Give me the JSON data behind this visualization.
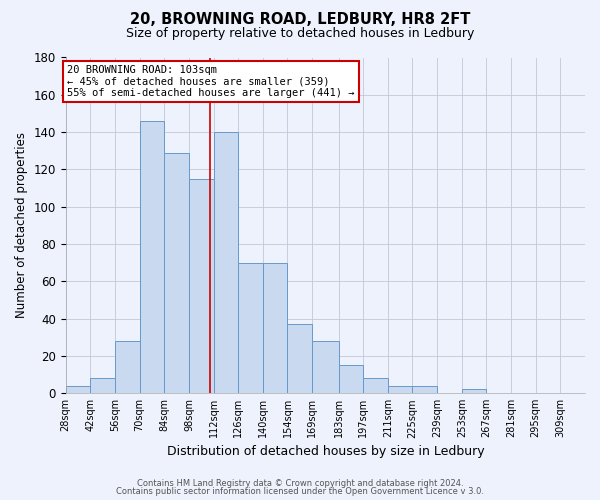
{
  "title_line1": "20, BROWNING ROAD, LEDBURY, HR8 2FT",
  "title_line2": "Size of property relative to detached houses in Ledbury",
  "xlabel": "Distribution of detached houses by size in Ledbury",
  "ylabel": "Number of detached properties",
  "bar_labels": [
    "28sqm",
    "42sqm",
    "56sqm",
    "70sqm",
    "84sqm",
    "98sqm",
    "112sqm",
    "126sqm",
    "140sqm",
    "154sqm",
    "169sqm",
    "183sqm",
    "197sqm",
    "211sqm",
    "225sqm",
    "239sqm",
    "253sqm",
    "267sqm",
    "281sqm",
    "295sqm",
    "309sqm"
  ],
  "bar_values": [
    4,
    8,
    28,
    146,
    129,
    115,
    140,
    70,
    70,
    37,
    28,
    15,
    8,
    4,
    4,
    0,
    2,
    0,
    0,
    0,
    0
  ],
  "bar_color": "#c9d9f0",
  "bar_edge_color": "#6699cc",
  "grid_color": "#c0c8d8",
  "background_color": "#eef2fc",
  "property_label": "20 BROWNING ROAD: 103sqm",
  "annotation_line1": "← 45% of detached houses are smaller (359)",
  "annotation_line2": "55% of semi-detached houses are larger (441) →",
  "vline_color": "#cc0000",
  "vline_x": 103,
  "bin_edges": [
    21,
    35,
    49,
    63,
    77,
    91,
    105,
    119,
    133,
    147,
    161,
    176,
    190,
    204,
    218,
    232,
    246,
    260,
    274,
    288,
    302,
    316
  ],
  "ylim": [
    0,
    180
  ],
  "yticks": [
    0,
    20,
    40,
    60,
    80,
    100,
    120,
    140,
    160,
    180
  ],
  "footer_line1": "Contains HM Land Registry data © Crown copyright and database right 2024.",
  "footer_line2": "Contains public sector information licensed under the Open Government Licence v 3.0.",
  "annotation_box_facecolor": "#ffffff",
  "annotation_box_edgecolor": "#cc0000"
}
